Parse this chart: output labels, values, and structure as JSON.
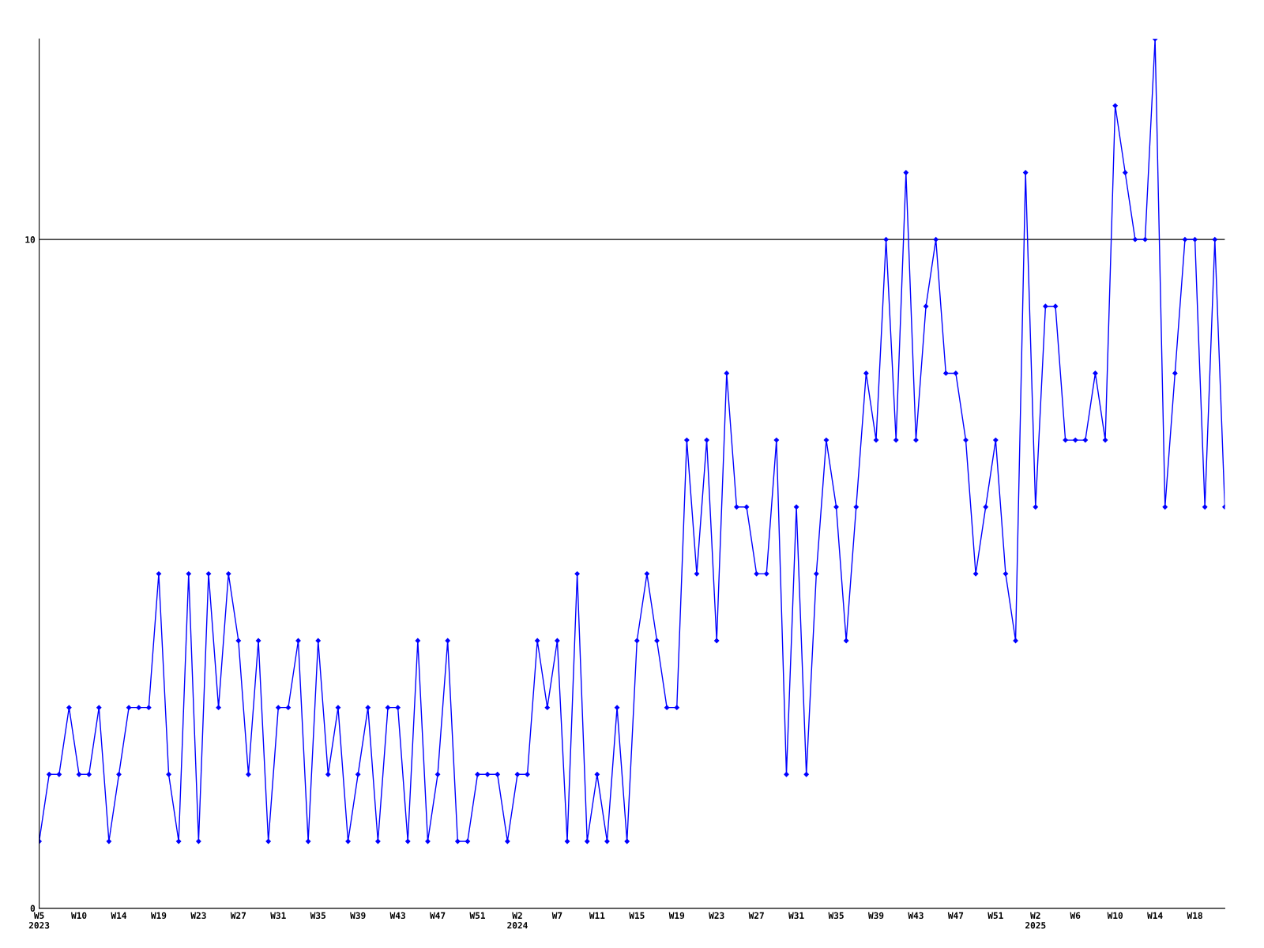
{
  "chart_data": {
    "type": "line",
    "categories": [
      "W5\n2023",
      null,
      null,
      null,
      "W10",
      null,
      null,
      null,
      "W14",
      null,
      null,
      null,
      "W19",
      null,
      null,
      null,
      "W23",
      null,
      null,
      null,
      "W27",
      null,
      null,
      null,
      "W31",
      null,
      null,
      null,
      "W35",
      null,
      null,
      null,
      "W39",
      null,
      null,
      null,
      "W43",
      null,
      null,
      null,
      "W47",
      null,
      null,
      null,
      "W51",
      null,
      null,
      null,
      "W2\n2024",
      null,
      null,
      null,
      "W7",
      null,
      null,
      null,
      "W11",
      null,
      null,
      null,
      "W15",
      null,
      null,
      null,
      "W19",
      null,
      null,
      null,
      "W23",
      null,
      null,
      null,
      "W27",
      null,
      null,
      null,
      "W31",
      null,
      null,
      null,
      "W35",
      null,
      null,
      null,
      "W39",
      null,
      null,
      null,
      "W43",
      null,
      null,
      null,
      "W47",
      null,
      null,
      null,
      "W51",
      null,
      null,
      null,
      "W2\n2025",
      null,
      null,
      null,
      "W6",
      null,
      null,
      null,
      "W10",
      null,
      null,
      null,
      "W14",
      null,
      null,
      null,
      "W18",
      null,
      null,
      null
    ],
    "series": [
      {
        "color": "#0000ff",
        "values": [
          1,
          2,
          2,
          3,
          2,
          2,
          3,
          1,
          2,
          3,
          3,
          3,
          5,
          2,
          1,
          5,
          1,
          5,
          3,
          5,
          4,
          2,
          4,
          1,
          3,
          3,
          4,
          1,
          4,
          2,
          3,
          1,
          2,
          3,
          1,
          3,
          3,
          1,
          4,
          1,
          2,
          4,
          1,
          1,
          2,
          2,
          2,
          1,
          2,
          2,
          4,
          3,
          4,
          1,
          5,
          1,
          2,
          1,
          3,
          1,
          4,
          5,
          4,
          3,
          3,
          7,
          5,
          7,
          4,
          8,
          6,
          6,
          5,
          5,
          7,
          2,
          6,
          2,
          5,
          7,
          6,
          4,
          6,
          8,
          7,
          10,
          7,
          11,
          7,
          9,
          10,
          8,
          8,
          7,
          5,
          6,
          7,
          5,
          4,
          11,
          6,
          9,
          9,
          7,
          7,
          7,
          8,
          7,
          12,
          11,
          10,
          10,
          13,
          6,
          8,
          10,
          10,
          6,
          10,
          6
        ]
      }
    ],
    "ylim": [
      0,
      13
    ],
    "yticks": [
      0,
      10
    ],
    "grid": "y",
    "marker": "diamond",
    "line_style": "solid"
  }
}
